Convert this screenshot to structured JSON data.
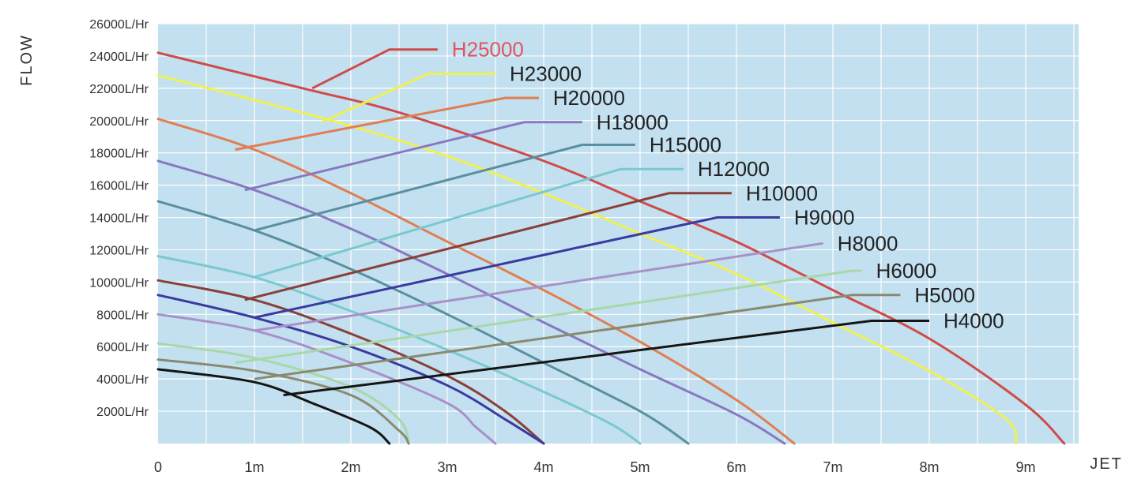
{
  "chart_data": {
    "type": "line",
    "title": "",
    "xlabel": "JET",
    "ylabel": "FLOW",
    "xlim": [
      0,
      9.5
    ],
    "ylim": [
      0,
      26000
    ],
    "x_ticks": [
      {
        "value": 0,
        "label": "0"
      },
      {
        "value": 1,
        "label": "1m"
      },
      {
        "value": 2,
        "label": "2m"
      },
      {
        "value": 3,
        "label": "3m"
      },
      {
        "value": 4,
        "label": "4m"
      },
      {
        "value": 5,
        "label": "5m"
      },
      {
        "value": 6,
        "label": "6m"
      },
      {
        "value": 7,
        "label": "7m"
      },
      {
        "value": 8,
        "label": "8m"
      },
      {
        "value": 9,
        "label": "9m"
      }
    ],
    "y_ticks": [
      {
        "value": 2000,
        "label": "2000L/Hr"
      },
      {
        "value": 4000,
        "label": "4000L/Hr"
      },
      {
        "value": 6000,
        "label": "6000L/Hr"
      },
      {
        "value": 8000,
        "label": "8000L/Hr"
      },
      {
        "value": 10000,
        "label": "10000L/Hr"
      },
      {
        "value": 12000,
        "label": "12000L/Hr"
      },
      {
        "value": 14000,
        "label": "14000L/Hr"
      },
      {
        "value": 16000,
        "label": "16000L/Hr"
      },
      {
        "value": 18000,
        "label": "18000L/Hr"
      },
      {
        "value": 20000,
        "label": "20000L/Hr"
      },
      {
        "value": 22000,
        "label": "22000L/Hr"
      },
      {
        "value": 24000,
        "label": "24000L/Hr"
      },
      {
        "value": 26000,
        "label": "26000L/Hr"
      }
    ],
    "grid": true,
    "background_color": "#c2e0ef",
    "grid_color": "#ffffff",
    "series": [
      {
        "name": "H25000",
        "color": "#d04a4a",
        "label_color": "#e05560",
        "points": [
          [
            0,
            24200
          ],
          [
            1.5,
            22000
          ],
          [
            2.5,
            20500
          ],
          [
            4,
            17500
          ],
          [
            5,
            15000
          ],
          [
            6,
            12500
          ],
          [
            7,
            9500
          ],
          [
            8,
            6500
          ],
          [
            9,
            2400
          ],
          [
            9.4,
            0
          ]
        ],
        "leader": [
          [
            1.6,
            22000
          ],
          [
            2.4,
            24400
          ],
          [
            2.9,
            24400
          ]
        ]
      },
      {
        "name": "H23000",
        "color": "#f0f050",
        "label_color": "#222222",
        "points": [
          [
            0,
            22800
          ],
          [
            1.8,
            20000
          ],
          [
            3,
            17800
          ],
          [
            4,
            15500
          ],
          [
            5,
            13000
          ],
          [
            6,
            10500
          ],
          [
            7,
            7500
          ],
          [
            8,
            4500
          ],
          [
            8.8,
            1500
          ],
          [
            8.9,
            0
          ]
        ],
        "leader": [
          [
            1.7,
            19900
          ],
          [
            2.8,
            22900
          ],
          [
            3.5,
            22900
          ]
        ]
      },
      {
        "name": "H20000",
        "color": "#e07e52",
        "label_color": "#222222",
        "points": [
          [
            0,
            20100
          ],
          [
            1,
            18200
          ],
          [
            2,
            15500
          ],
          [
            3,
            12500
          ],
          [
            4,
            9500
          ],
          [
            5,
            6300
          ],
          [
            6,
            2700
          ],
          [
            6.6,
            0
          ]
        ],
        "leader": [
          [
            0.8,
            18200
          ],
          [
            3.6,
            21400
          ],
          [
            3.95,
            21400
          ]
        ]
      },
      {
        "name": "H18000",
        "color": "#8878c0",
        "label_color": "#222222",
        "points": [
          [
            0,
            17500
          ],
          [
            1,
            15700
          ],
          [
            2,
            13300
          ],
          [
            3,
            10500
          ],
          [
            4,
            7500
          ],
          [
            5,
            4600
          ],
          [
            6,
            1800
          ],
          [
            6.5,
            0
          ]
        ],
        "leader": [
          [
            0.9,
            15700
          ],
          [
            3.8,
            19900
          ],
          [
            4.4,
            19900
          ]
        ]
      },
      {
        "name": "H15000",
        "color": "#5a8fa0",
        "label_color": "#222222",
        "points": [
          [
            0,
            15000
          ],
          [
            1,
            13200
          ],
          [
            2,
            10800
          ],
          [
            3,
            8000
          ],
          [
            4,
            5000
          ],
          [
            5,
            2000
          ],
          [
            5.5,
            0
          ]
        ],
        "leader": [
          [
            1.0,
            13200
          ],
          [
            4.4,
            18500
          ],
          [
            4.95,
            18500
          ]
        ]
      },
      {
        "name": "H12000",
        "color": "#7ac8d0",
        "label_color": "#222222",
        "points": [
          [
            0,
            11600
          ],
          [
            1,
            10300
          ],
          [
            2,
            8200
          ],
          [
            3,
            5800
          ],
          [
            4,
            3200
          ],
          [
            4.7,
            1200
          ],
          [
            5.0,
            0
          ]
        ],
        "leader": [
          [
            1.0,
            10300
          ],
          [
            4.8,
            17000
          ],
          [
            5.45,
            17000
          ]
        ]
      },
      {
        "name": "H10000",
        "color": "#8a4038",
        "label_color": "#222222",
        "points": [
          [
            0,
            10100
          ],
          [
            1,
            8900
          ],
          [
            2,
            6800
          ],
          [
            3,
            4200
          ],
          [
            3.6,
            2000
          ],
          [
            4.0,
            0
          ]
        ],
        "leader": [
          [
            0.9,
            8900
          ],
          [
            5.3,
            15500
          ],
          [
            5.95,
            15500
          ]
        ]
      },
      {
        "name": "H9000",
        "color": "#3a3aa0",
        "label_color": "#222222",
        "points": [
          [
            0,
            9200
          ],
          [
            1,
            7800
          ],
          [
            2,
            6000
          ],
          [
            3,
            3600
          ],
          [
            3.6,
            1500
          ],
          [
            4.0,
            0
          ]
        ],
        "leader": [
          [
            1.0,
            7800
          ],
          [
            5.8,
            14000
          ],
          [
            6.45,
            14000
          ]
        ]
      },
      {
        "name": "H8000",
        "color": "#a890c8",
        "label_color": "#222222",
        "points": [
          [
            0,
            8000
          ],
          [
            1,
            7000
          ],
          [
            2,
            5000
          ],
          [
            3,
            2500
          ],
          [
            3.3,
            1000
          ],
          [
            3.5,
            0
          ]
        ],
        "leader": [
          [
            1.0,
            7000
          ],
          [
            6.9,
            12400
          ],
          [
            6.9,
            12400
          ]
        ]
      },
      {
        "name": "H6000",
        "color": "#a8d8a8",
        "label_color": "#222222",
        "points": [
          [
            0,
            6200
          ],
          [
            1,
            5300
          ],
          [
            2,
            3500
          ],
          [
            2.5,
            1500
          ],
          [
            2.6,
            0
          ]
        ],
        "leader": [
          [
            0.8,
            5000
          ],
          [
            7.2,
            10700
          ],
          [
            7.3,
            10700
          ]
        ]
      },
      {
        "name": "H5000",
        "color": "#8a8a70",
        "label_color": "#222222",
        "points": [
          [
            0,
            5200
          ],
          [
            1,
            4500
          ],
          [
            2,
            3000
          ],
          [
            2.5,
            800
          ],
          [
            2.6,
            0
          ]
        ],
        "leader": [
          [
            1.0,
            4000
          ],
          [
            7.2,
            9200
          ],
          [
            7.7,
            9200
          ]
        ]
      },
      {
        "name": "H4000",
        "color": "#151515",
        "label_color": "#222222",
        "points": [
          [
            0,
            4600
          ],
          [
            1,
            3800
          ],
          [
            1.6,
            2500
          ],
          [
            2.2,
            1000
          ],
          [
            2.4,
            0
          ]
        ],
        "leader": [
          [
            1.3,
            3000
          ],
          [
            7.4,
            7600
          ],
          [
            8.0,
            7600
          ]
        ]
      }
    ]
  }
}
